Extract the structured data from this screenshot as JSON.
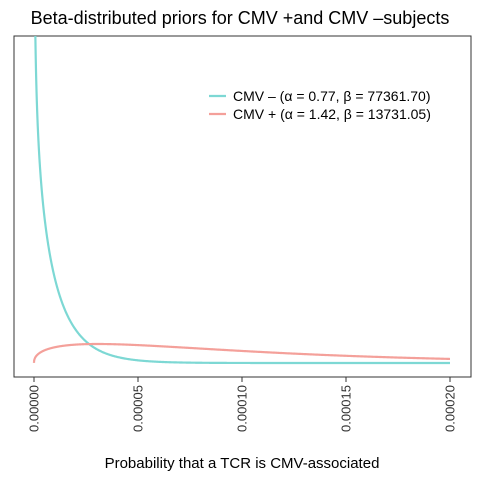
{
  "chart_data": {
    "type": "line",
    "title": "Beta-distributed priors for CMV +and CMV –subjects",
    "xlabel": "Probability that a TCR is CMV-associated",
    "ylabel": "",
    "xlim": [
      0,
      0.0002
    ],
    "x_ticks": [
      "0.00000",
      "0.00005",
      "0.00010",
      "0.00015",
      "0.00020"
    ],
    "y_ticks": [],
    "grid": false,
    "legend_position": "top-right",
    "series": [
      {
        "name": "CMV – (α = 0.77, β = 77361.70)",
        "color": "#7dd8d4",
        "distribution": "beta",
        "alpha": 0.77,
        "beta": 77361.7
      },
      {
        "name": "CMV + (α = 1.42, β = 13731.05)",
        "color": "#f4a09a",
        "distribution": "beta",
        "alpha": 1.42,
        "beta": 13731.05
      }
    ]
  }
}
